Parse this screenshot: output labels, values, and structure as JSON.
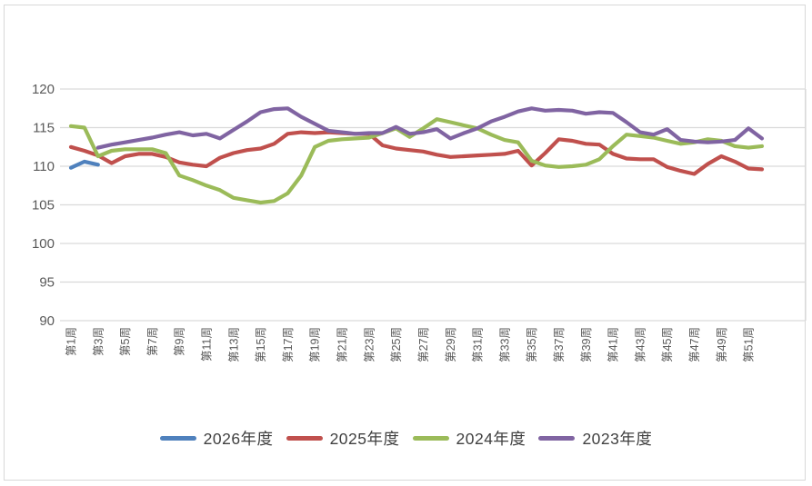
{
  "chart_data": {
    "type": "line",
    "title": "",
    "xlabel": "",
    "ylabel": "",
    "weeks": 52,
    "x_tick_labels": [
      "第1周",
      "第3周",
      "第5周",
      "第7周",
      "第9周",
      "第11周",
      "第13周",
      "第15周",
      "第17周",
      "第19周",
      "第21周",
      "第23周",
      "第25周",
      "第27周",
      "第29周",
      "第31周",
      "第33周",
      "第35周",
      "第37周",
      "第39周",
      "第41周",
      "第43周",
      "第45周",
      "第47周",
      "第49周",
      "第51周"
    ],
    "x_tick_step": 2,
    "ylim": [
      90,
      120
    ],
    "yticks": [
      90,
      95,
      100,
      105,
      110,
      115,
      120
    ],
    "grid": "horizontal",
    "grid_color": "#d9d9d9",
    "axis_text_color": "#595959",
    "legend_position": "bottom",
    "legend_order": [
      "2026年度",
      "2025年度",
      "2024年度",
      "2023年度"
    ],
    "series": [
      {
        "name": "2026年度",
        "color": "#4f81bd",
        "values": [
          109.8,
          110.6,
          110.2,
          null,
          null,
          null,
          null,
          null,
          null,
          null,
          null,
          null,
          null,
          null,
          null,
          null,
          null,
          null,
          null,
          null,
          null,
          null,
          null,
          null,
          null,
          null,
          null,
          null,
          null,
          null,
          null,
          null,
          null,
          null,
          null,
          null,
          null,
          null,
          null,
          null,
          null,
          null,
          null,
          null,
          null,
          null,
          null,
          null,
          null,
          null,
          null,
          null
        ]
      },
      {
        "name": "2025年度",
        "color": "#c0504d",
        "values": [
          112.5,
          112.0,
          111.4,
          110.4,
          111.3,
          111.6,
          111.6,
          111.2,
          110.5,
          110.2,
          110.0,
          111.1,
          111.7,
          112.1,
          112.3,
          112.9,
          114.2,
          114.4,
          114.3,
          114.4,
          114.3,
          114.2,
          114.2,
          112.7,
          112.3,
          112.1,
          111.9,
          111.5,
          111.2,
          111.3,
          111.4,
          111.5,
          111.6,
          112.0,
          110.1,
          111.7,
          113.5,
          113.3,
          112.9,
          112.8,
          111.6,
          111.0,
          110.9,
          110.9,
          109.9,
          109.4,
          109.0,
          110.3,
          111.3,
          110.6,
          109.7,
          109.6
        ]
      },
      {
        "name": "2024年度",
        "color": "#9bbb59",
        "values": [
          115.2,
          115.0,
          111.3,
          112.0,
          112.2,
          112.2,
          112.2,
          111.7,
          108.8,
          108.2,
          107.5,
          106.9,
          105.9,
          105.6,
          105.3,
          105.5,
          106.5,
          108.8,
          112.5,
          113.3,
          113.5,
          113.6,
          113.7,
          114.3,
          114.9,
          113.8,
          114.9,
          116.1,
          115.7,
          115.3,
          114.9,
          114.1,
          113.4,
          113.1,
          110.7,
          110.1,
          109.9,
          110.0,
          110.2,
          110.9,
          112.6,
          114.1,
          113.9,
          113.7,
          113.3,
          112.9,
          113.1,
          113.5,
          113.3,
          112.6,
          112.4,
          112.6
        ]
      },
      {
        "name": "2023年度",
        "color": "#8064a2",
        "values": [
          null,
          null,
          112.4,
          112.8,
          113.1,
          113.4,
          113.7,
          114.1,
          114.4,
          114.0,
          114.2,
          113.6,
          114.7,
          115.8,
          117.0,
          117.4,
          117.5,
          116.4,
          115.5,
          114.6,
          114.4,
          114.2,
          114.3,
          114.3,
          115.1,
          114.2,
          114.4,
          114.8,
          113.6,
          114.3,
          114.9,
          115.8,
          116.4,
          117.1,
          117.5,
          117.2,
          117.3,
          117.2,
          116.8,
          117.0,
          116.9,
          115.7,
          114.4,
          114.1,
          114.8,
          113.4,
          113.2,
          113.1,
          113.2,
          113.4,
          114.9,
          113.6
        ]
      }
    ]
  }
}
